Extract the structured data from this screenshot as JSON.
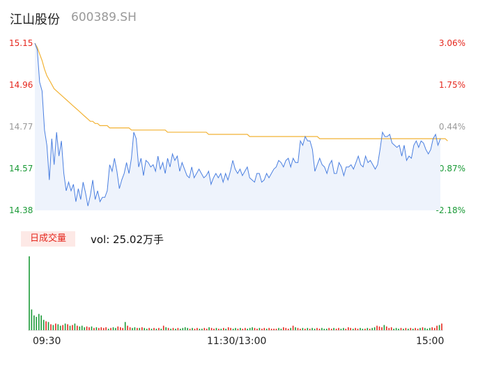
{
  "header": {
    "name": "江山股份",
    "code": "600389.SH"
  },
  "colors": {
    "up": "#e5271d",
    "down": "#1a9a36",
    "flat": "#999999",
    "price_line": "#4a7fe0",
    "avg_line": "#f2b233",
    "area_fill": "#eef3fc"
  },
  "volume": {
    "tab_label": "日成交量",
    "text": "vol: 25.02万手"
  },
  "chart_data": [
    {
      "type": "line",
      "title": "",
      "y_ticks": [
        "15.15",
        "14.96",
        "14.77",
        "14.57",
        "14.38"
      ],
      "y_tick_values": [
        15.15,
        14.96,
        14.77,
        14.57,
        14.38
      ],
      "right_ticks": [
        "3.06%",
        "1.75%",
        "0.44%",
        "-0.87%",
        "-2.18%"
      ],
      "ylim": [
        14.38,
        15.15
      ],
      "x_ticks": [
        "09:30",
        "11:30/13:00",
        "15:00"
      ],
      "grid": false,
      "series": [
        {
          "role": "price",
          "values": [
            15.15,
            15.12,
            14.97,
            14.93,
            14.75,
            14.68,
            14.52,
            14.71,
            14.59,
            14.74,
            14.63,
            14.7,
            14.55,
            14.47,
            14.51,
            14.47,
            14.5,
            14.42,
            14.48,
            14.43,
            14.51,
            14.46,
            14.4,
            14.45,
            14.52,
            14.43,
            14.47,
            14.42,
            14.44,
            14.44,
            14.47,
            14.59,
            14.56,
            14.62,
            14.56,
            14.48,
            14.52,
            14.55,
            14.6,
            14.55,
            14.62,
            14.74,
            14.71,
            14.58,
            14.62,
            14.54,
            14.61,
            14.6,
            14.58,
            14.59,
            14.56,
            14.63,
            14.57,
            14.6,
            14.55,
            14.62,
            14.58,
            14.64,
            14.61,
            14.63,
            14.56,
            14.6,
            14.57,
            14.54,
            14.53,
            14.58,
            14.53,
            14.55,
            14.57,
            14.55,
            14.53,
            14.54,
            14.56,
            14.5,
            14.53,
            14.55,
            14.53,
            14.55,
            14.51,
            14.55,
            14.52,
            14.56,
            14.61,
            14.57,
            14.55,
            14.57,
            14.54,
            14.56,
            14.58,
            14.53,
            14.52,
            14.51,
            14.55,
            14.55,
            14.51,
            14.52,
            14.55,
            14.53,
            14.55,
            14.57,
            14.58,
            14.61,
            14.6,
            14.58,
            14.61,
            14.62,
            14.58,
            14.62,
            14.6,
            14.6,
            14.7,
            14.68,
            14.72,
            14.7,
            14.7,
            14.66,
            14.56,
            14.59,
            14.62,
            14.59,
            14.58,
            14.55,
            14.59,
            14.61,
            14.55,
            14.55,
            14.6,
            14.58,
            14.54,
            14.58,
            14.58,
            14.59,
            14.57,
            14.6,
            14.63,
            14.59,
            14.58,
            14.63,
            14.6,
            14.61,
            14.59,
            14.57,
            14.59,
            14.66,
            14.74,
            14.72,
            14.72,
            14.73,
            14.69,
            14.68,
            14.67,
            14.68,
            14.63,
            14.68,
            14.61,
            14.63,
            14.62,
            14.68,
            14.7,
            14.67,
            14.7,
            14.69,
            14.66,
            14.64,
            14.66,
            14.71,
            14.73,
            14.68,
            14.71
          ]
        },
        {
          "role": "average",
          "values": [
            15.15,
            15.13,
            15.1,
            15.07,
            15.03,
            15.0,
            14.98,
            14.96,
            14.94,
            14.93,
            14.92,
            14.91,
            14.9,
            14.89,
            14.88,
            14.87,
            14.86,
            14.85,
            14.84,
            14.83,
            14.82,
            14.81,
            14.8,
            14.79,
            14.79,
            14.78,
            14.78,
            14.77,
            14.77,
            14.77,
            14.77,
            14.76,
            14.76,
            14.76,
            14.76,
            14.76,
            14.76,
            14.76,
            14.76,
            14.76,
            14.75,
            14.75,
            14.75,
            14.75,
            14.75,
            14.75,
            14.75,
            14.75,
            14.75,
            14.75,
            14.75,
            14.75,
            14.75,
            14.75,
            14.75,
            14.74,
            14.74,
            14.74,
            14.74,
            14.74,
            14.74,
            14.74,
            14.74,
            14.74,
            14.74,
            14.74,
            14.74,
            14.74,
            14.74,
            14.74,
            14.74,
            14.74,
            14.73,
            14.73,
            14.73,
            14.73,
            14.73,
            14.73,
            14.73,
            14.73,
            14.73,
            14.73,
            14.73,
            14.73,
            14.73,
            14.73,
            14.73,
            14.73,
            14.73,
            14.72,
            14.72,
            14.72,
            14.72,
            14.72,
            14.72,
            14.72,
            14.72,
            14.72,
            14.72,
            14.72,
            14.72,
            14.72,
            14.72,
            14.72,
            14.72,
            14.72,
            14.72,
            14.72,
            14.72,
            14.72,
            14.72,
            14.72,
            14.72,
            14.72,
            14.72,
            14.72,
            14.72,
            14.72,
            14.71,
            14.71,
            14.71,
            14.71,
            14.71,
            14.71,
            14.71,
            14.71,
            14.71,
            14.71,
            14.71,
            14.71,
            14.71,
            14.71,
            14.71,
            14.71,
            14.71,
            14.71,
            14.71,
            14.71,
            14.71,
            14.71,
            14.71,
            14.71,
            14.71,
            14.71,
            14.71,
            14.71,
            14.71,
            14.71,
            14.71,
            14.71,
            14.71,
            14.71,
            14.71,
            14.71,
            14.71,
            14.71,
            14.71,
            14.71,
            14.71,
            14.71,
            14.71,
            14.71,
            14.71,
            14.71,
            14.71,
            14.71,
            14.71,
            14.71,
            14.71,
            14.71,
            14.71,
            14.7
          ]
        }
      ]
    },
    {
      "type": "bar",
      "title": "",
      "ymax": 100,
      "values": [
        100,
        28,
        20,
        18,
        22,
        20,
        14,
        12,
        11,
        8,
        7,
        9,
        8,
        6,
        7,
        9,
        8,
        6,
        7,
        9,
        6,
        5,
        6,
        4,
        5,
        4,
        5,
        3,
        4,
        3,
        4,
        3,
        4,
        2,
        3,
        4,
        3,
        5,
        4,
        3,
        11,
        6,
        4,
        3,
        4,
        3,
        3,
        4,
        3,
        2,
        3,
        2,
        3,
        2,
        3,
        2,
        6,
        4,
        3,
        2,
        3,
        2,
        3,
        2,
        3,
        4,
        3,
        2,
        3,
        2,
        3,
        2,
        2,
        3,
        2,
        4,
        3,
        2,
        3,
        2,
        2,
        3,
        2,
        4,
        3,
        2,
        3,
        2,
        3,
        2,
        3,
        2,
        3,
        4,
        3,
        2,
        3,
        2,
        3,
        2,
        3,
        2,
        2,
        2,
        3,
        2,
        4,
        3,
        2,
        3,
        6,
        4,
        3,
        2,
        3,
        2,
        3,
        2,
        3,
        2,
        3,
        2,
        3,
        2,
        2,
        3,
        2,
        3,
        2,
        3,
        2,
        3,
        2,
        4,
        3,
        2,
        3,
        2,
        3,
        2,
        2,
        3,
        2,
        3,
        4,
        6,
        5,
        4,
        7,
        5,
        3,
        4,
        2,
        3,
        2,
        3,
        2,
        3,
        2,
        3,
        2,
        3,
        2,
        3,
        4,
        3,
        2,
        3,
        4,
        3,
        6,
        7,
        9
      ]
    }
  ]
}
